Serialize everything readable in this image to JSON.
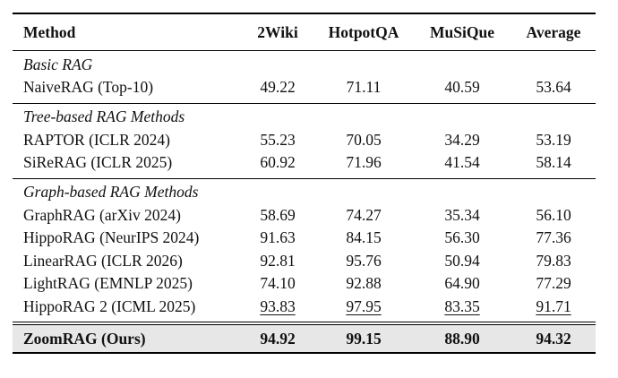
{
  "table": {
    "headers": [
      "Method",
      "2Wiki",
      "HotpotQA",
      "MuSiQue",
      "Average"
    ],
    "groups": [
      {
        "title": "Basic RAG",
        "rows": [
          {
            "method": "NaiveRAG (Top-10)",
            "values": [
              "49.22",
              "71.11",
              "40.59",
              "53.64"
            ],
            "underline": [
              false,
              false,
              false,
              false
            ]
          }
        ]
      },
      {
        "title": "Tree-based RAG Methods",
        "rows": [
          {
            "method": "RAPTOR (ICLR 2024)",
            "values": [
              "55.23",
              "70.05",
              "34.29",
              "53.19"
            ],
            "underline": [
              false,
              false,
              false,
              false
            ]
          },
          {
            "method": "SiReRAG (ICLR 2025)",
            "values": [
              "60.92",
              "71.96",
              "41.54",
              "58.14"
            ],
            "underline": [
              false,
              false,
              false,
              false
            ]
          }
        ]
      },
      {
        "title": "Graph-based RAG Methods",
        "rows": [
          {
            "method": "GraphRAG (arXiv 2024)",
            "values": [
              "58.69",
              "74.27",
              "35.34",
              "56.10"
            ],
            "underline": [
              false,
              false,
              false,
              false
            ]
          },
          {
            "method": "HippoRAG (NeurIPS 2024)",
            "values": [
              "91.63",
              "84.15",
              "56.30",
              "77.36"
            ],
            "underline": [
              false,
              false,
              false,
              false
            ]
          },
          {
            "method": "LinearRAG (ICLR 2026)",
            "values": [
              "92.81",
              "95.76",
              "50.94",
              "79.83"
            ],
            "underline": [
              false,
              false,
              false,
              false
            ]
          },
          {
            "method": "LightRAG (EMNLP 2025)",
            "values": [
              "74.10",
              "92.88",
              "64.90",
              "77.29"
            ],
            "underline": [
              false,
              false,
              false,
              false
            ]
          },
          {
            "method": "HippoRAG 2 (ICML 2025)",
            "values": [
              "93.83",
              "97.95",
              "83.35",
              "91.71"
            ],
            "underline": [
              true,
              true,
              true,
              true
            ]
          }
        ]
      }
    ],
    "ours": {
      "method": "ZoomRAG (Ours)",
      "values": [
        "94.92",
        "99.15",
        "88.90",
        "94.32"
      ]
    }
  }
}
